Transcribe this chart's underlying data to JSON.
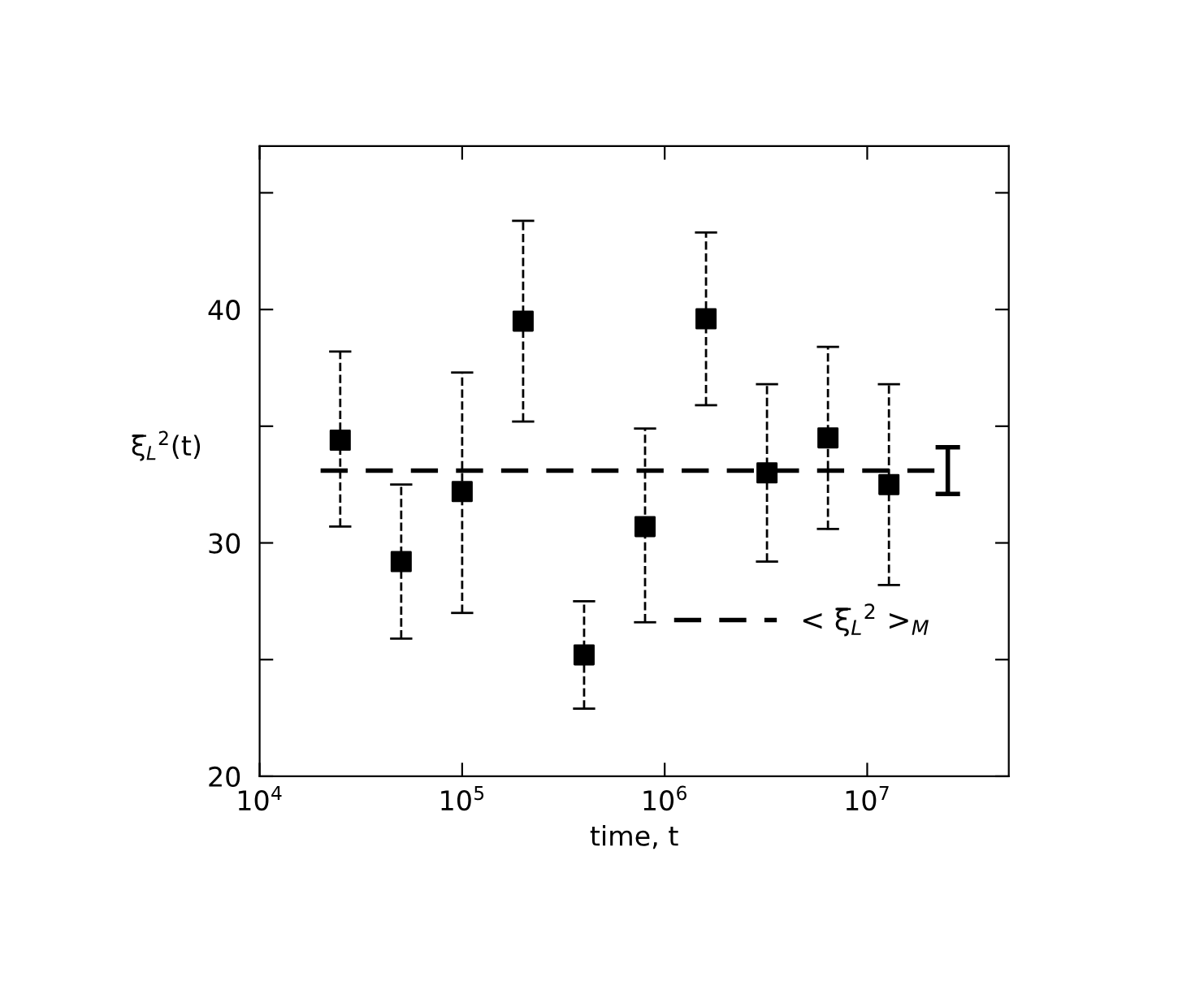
{
  "chart_data": {
    "type": "scatter",
    "xlabel": "time, t",
    "ylabel": "ξ̅$_{L}$$^{2}$(t)",
    "log": "x",
    "grid": false,
    "legend": "bottom right",
    "xlim": [
      10000,
      50000000
    ],
    "xticks": [
      {
        "value": 10000,
        "label": "10$^{4}$"
      },
      {
        "value": 100000,
        "label": "10$^{5}$"
      },
      {
        "value": 1000000,
        "label": "10$^{6}$"
      },
      {
        "value": 10000000,
        "label": "10$^{7}$"
      }
    ],
    "ylim": [
      20,
      47
    ],
    "yticks": [
      20,
      {
        "value": 25,
        "label": null
      },
      30,
      {
        "value": 35,
        "label": null
      },
      40,
      {
        "value": 45,
        "label": null
      }
    ],
    "series": [
      {
        "color": "#000000",
        "marker": "square",
        "line_style": "dashed",
        "x": [
          25000,
          50000,
          100000,
          200000,
          400000,
          800000,
          1600000,
          3200000,
          6400000,
          12800000
        ],
        "values": [
          34.4,
          29.2,
          32.2,
          39.5,
          25.2,
          30.7,
          39.6,
          33.0,
          34.5,
          32.5
        ],
        "errors": [
          [
            30.7,
            38.2
          ],
          [
            25.9,
            32.5
          ],
          [
            27.0,
            37.3
          ],
          [
            35.2,
            43.8
          ],
          [
            22.9,
            27.5
          ],
          [
            26.6,
            34.9
          ],
          [
            35.9,
            43.3
          ],
          [
            29.2,
            36.8
          ],
          [
            30.6,
            38.4
          ],
          [
            28.2,
            36.8
          ]
        ]
      },
      {
        "type": "line",
        "name": "< ξ̅$_{L}$$^{2}$ >$_{M}$",
        "color": "#000000",
        "marker": "none",
        "line_style": "dashed",
        "x": [
          20000,
          25000000
        ],
        "values": [
          33.1,
          33.1
        ],
        "errors": [
          null,
          [
            32.1,
            34.1
          ]
        ]
      }
    ]
  }
}
